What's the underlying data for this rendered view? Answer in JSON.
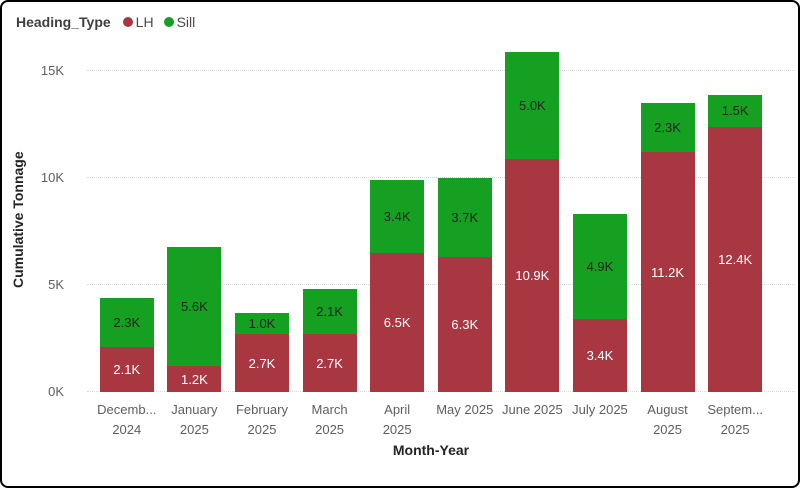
{
  "legend": {
    "title": "Heading_Type",
    "items": [
      {
        "label": "LH",
        "color": "#A83742"
      },
      {
        "label": "Sill",
        "color": "#16A021"
      }
    ]
  },
  "y_axis": {
    "title": "Cumulative Tonnage",
    "ticks": [
      {
        "label": "0K",
        "k": 0
      },
      {
        "label": "5K",
        "k": 5
      },
      {
        "label": "10K",
        "k": 10
      },
      {
        "label": "15K",
        "k": 15
      }
    ]
  },
  "x_axis": {
    "title": "Month-Year",
    "tick_labels": [
      [
        "Decemb...",
        "2024"
      ],
      [
        "January",
        "2025"
      ],
      [
        "February",
        "2025"
      ],
      [
        "March",
        "2025"
      ],
      [
        "April",
        "2025"
      ],
      [
        "May 2025"
      ],
      [
        "June 2025"
      ],
      [
        "July 2025"
      ],
      [
        "August",
        "2025"
      ],
      [
        "Septem...",
        "2025"
      ]
    ]
  },
  "chart_data": {
    "type": "bar",
    "stacked": true,
    "title": "",
    "xlabel": "Month-Year",
    "ylabel": "Cumulative Tonnage",
    "ylim": [
      0,
      16
    ],
    "yticks": [
      "0K",
      "5K",
      "10K",
      "15K"
    ],
    "grid": "horizontal dotted",
    "legend_position": "top-left",
    "categories": [
      "December 2024",
      "January 2025",
      "February 2025",
      "March 2025",
      "April 2025",
      "May 2025",
      "June 2025",
      "July 2025",
      "August 2025",
      "September 2025"
    ],
    "series": [
      {
        "name": "LH",
        "color": "#A83742",
        "label_color": "#FFFFFF",
        "values_k": [
          2.1,
          1.2,
          2.7,
          2.7,
          6.5,
          6.3,
          10.9,
          3.4,
          11.2,
          12.4
        ],
        "labels": [
          "2.1K",
          "1.2K",
          "2.7K",
          "2.7K",
          "6.5K",
          "6.3K",
          "10.9K",
          "3.4K",
          "11.2K",
          "12.4K"
        ]
      },
      {
        "name": "Sill",
        "color": "#16A021",
        "label_color": "#252423",
        "values_k": [
          2.3,
          5.6,
          1.0,
          2.1,
          3.4,
          3.7,
          5.0,
          4.9,
          2.3,
          1.5
        ],
        "labels": [
          "2.3K",
          "5.6K",
          "1.0K",
          "2.1K",
          "3.4K",
          "3.7K",
          "5.0K",
          "4.9K",
          "2.3K",
          "1.5K"
        ]
      }
    ]
  },
  "colors": {
    "lh": "#A83742",
    "sill": "#16A021",
    "gridline": "#D9D9D9",
    "tick_text": "#605E5C",
    "axis_title_text": "#252423",
    "border": "#000000",
    "background": "#FFFFFF"
  }
}
